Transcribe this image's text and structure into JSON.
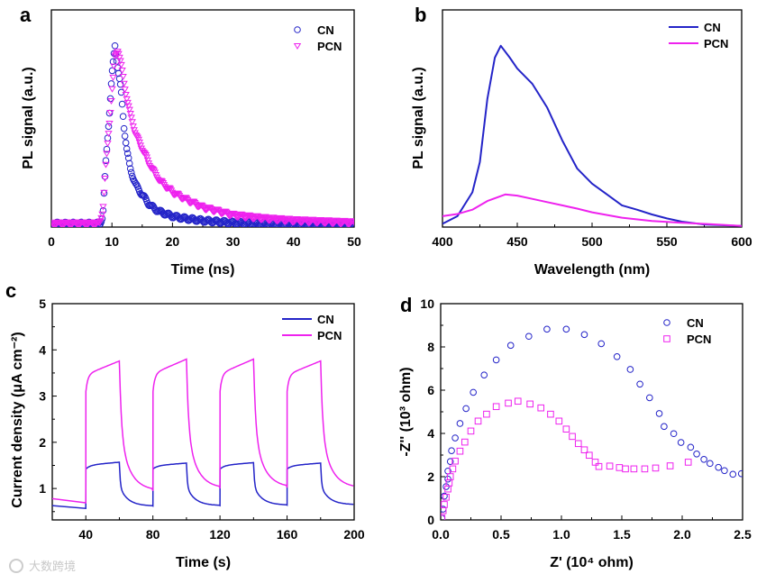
{
  "colors": {
    "CN": "#2424c8",
    "PCN": "#ee22ee",
    "axis": "#000000"
  },
  "watermark": "大数跨境",
  "chart_data": [
    {
      "panel": "a",
      "type": "scatter",
      "xlabel": "Time (ns)",
      "ylabel": "PL signal (a.u.)",
      "xlim": [
        0,
        50
      ],
      "ylim": [
        0,
        1
      ],
      "xticks": [
        "0",
        "10",
        "20",
        "30",
        "40",
        "50"
      ],
      "legend": "top-right",
      "series": [
        {
          "name": "CN",
          "marker": "circle",
          "points": [
            [
              0,
              0.015
            ],
            [
              8,
              0.015
            ],
            [
              8.5,
              0.05
            ],
            [
              9,
              0.3
            ],
            [
              9.5,
              0.49
            ],
            [
              10,
              0.7
            ],
            [
              10.5,
              0.835
            ],
            [
              11,
              0.73
            ],
            [
              11.5,
              0.63
            ],
            [
              12,
              0.46
            ],
            [
              12.5,
              0.35
            ],
            [
              13,
              0.27
            ],
            [
              14,
              0.19
            ],
            [
              15,
              0.15
            ],
            [
              16,
              0.11
            ],
            [
              17,
              0.085
            ],
            [
              18,
              0.07
            ],
            [
              20,
              0.05
            ],
            [
              22,
              0.04
            ],
            [
              25,
              0.03
            ],
            [
              30,
              0.02
            ],
            [
              35,
              0.015
            ],
            [
              50,
              0.015
            ]
          ]
        },
        {
          "name": "PCN",
          "marker": "triangle-down",
          "points": [
            [
              0,
              0.015
            ],
            [
              8,
              0.015
            ],
            [
              8.5,
              0.08
            ],
            [
              9,
              0.28
            ],
            [
              9.5,
              0.45
            ],
            [
              10,
              0.62
            ],
            [
              10.5,
              0.78
            ],
            [
              11,
              0.82
            ],
            [
              11.5,
              0.75
            ],
            [
              12,
              0.66
            ],
            [
              13,
              0.52
            ],
            [
              14,
              0.42
            ],
            [
              15,
              0.36
            ],
            [
              16,
              0.3
            ],
            [
              17,
              0.25
            ],
            [
              18,
              0.21
            ],
            [
              20,
              0.16
            ],
            [
              22,
              0.13
            ],
            [
              25,
              0.09
            ],
            [
              28,
              0.07
            ],
            [
              30,
              0.055
            ],
            [
              35,
              0.04
            ],
            [
              40,
              0.03
            ],
            [
              45,
              0.025
            ],
            [
              50,
              0.02
            ]
          ]
        }
      ]
    },
    {
      "panel": "b",
      "type": "line",
      "xlabel": "Wavelength (nm)",
      "ylabel": "PL signal (a.u.)",
      "xlim": [
        400,
        600
      ],
      "ylim": [
        0,
        1
      ],
      "xticks": [
        "400",
        "450",
        "500",
        "550",
        "600"
      ],
      "legend": "top-right",
      "series": [
        {
          "name": "CN",
          "points": [
            [
              400,
              0.015
            ],
            [
              410,
              0.05
            ],
            [
              420,
              0.16
            ],
            [
              425,
              0.3
            ],
            [
              430,
              0.59
            ],
            [
              435,
              0.78
            ],
            [
              439,
              0.835
            ],
            [
              445,
              0.78
            ],
            [
              450,
              0.73
            ],
            [
              460,
              0.66
            ],
            [
              470,
              0.55
            ],
            [
              480,
              0.4
            ],
            [
              490,
              0.27
            ],
            [
              500,
              0.2
            ],
            [
              510,
              0.15
            ],
            [
              520,
              0.1
            ],
            [
              530,
              0.08
            ],
            [
              540,
              0.058
            ],
            [
              550,
              0.04
            ],
            [
              560,
              0.025
            ],
            [
              575,
              0.012
            ],
            [
              600,
              0.005
            ]
          ]
        },
        {
          "name": "PCN",
          "points": [
            [
              400,
              0.05
            ],
            [
              410,
              0.06
            ],
            [
              420,
              0.08
            ],
            [
              430,
              0.12
            ],
            [
              442,
              0.15
            ],
            [
              450,
              0.145
            ],
            [
              460,
              0.13
            ],
            [
              470,
              0.115
            ],
            [
              480,
              0.1
            ],
            [
              490,
              0.085
            ],
            [
              500,
              0.068
            ],
            [
              520,
              0.043
            ],
            [
              540,
              0.028
            ],
            [
              560,
              0.02
            ],
            [
              580,
              0.013
            ],
            [
              600,
              0.005
            ]
          ]
        }
      ]
    },
    {
      "panel": "c",
      "type": "line",
      "xlabel": "Time (s)",
      "ylabel": "Current density (μA cm⁻²)",
      "xlim": [
        20,
        200
      ],
      "ylim": [
        0.32,
        5
      ],
      "xticks": [
        "40",
        "80",
        "120",
        "160",
        "200"
      ],
      "yticks": [
        "1",
        "2",
        "3",
        "4",
        "5"
      ],
      "legend": "top-right",
      "light_on_s": [
        40,
        80,
        120,
        160
      ],
      "light_duration_s": 20,
      "series": [
        {
          "name": "CN",
          "start": 0.63,
          "cycles": [
            {
              "dark_before": 0.57,
              "jump": 1.42,
              "on_end": 1.57,
              "dark_end": 0.62
            },
            {
              "dark_before": 0.62,
              "jump": 1.42,
              "on_end": 1.55,
              "dark_end": 0.63
            },
            {
              "dark_before": 0.63,
              "jump": 1.42,
              "on_end": 1.56,
              "dark_end": 0.64
            },
            {
              "dark_before": 0.64,
              "jump": 1.42,
              "on_end": 1.55,
              "dark_end": 0.65
            }
          ]
        },
        {
          "name": "PCN",
          "start": 0.78,
          "cycles": [
            {
              "dark_before": 0.69,
              "jump": 3.1,
              "on_end": 3.76,
              "dark_end": 0.95
            },
            {
              "dark_before": 0.95,
              "jump": 3.1,
              "on_end": 3.8,
              "dark_end": 1.0
            },
            {
              "dark_before": 1.0,
              "jump": 3.1,
              "on_end": 3.8,
              "dark_end": 1.02
            },
            {
              "dark_before": 1.02,
              "jump": 3.1,
              "on_end": 3.76,
              "dark_end": 1.01
            }
          ]
        }
      ]
    },
    {
      "panel": "d",
      "type": "scatter",
      "xlabel": "Z' (10⁴ ohm)",
      "ylabel": "-Z'' (10³ ohm)",
      "xlim": [
        0,
        2.5
      ],
      "ylim": [
        0,
        10
      ],
      "xticks": [
        "0.0",
        "0.5",
        "1.0",
        "1.5",
        "2.0",
        "2.5"
      ],
      "yticks": [
        "0",
        "2",
        "4",
        "6",
        "8",
        "10"
      ],
      "legend": "top-right",
      "series": [
        {
          "name": "CN",
          "marker": "circle",
          "points": [
            [
              0.01,
              0.08
            ],
            [
              0.02,
              0.5
            ],
            [
              0.03,
              1.1
            ],
            [
              0.045,
              1.54
            ],
            [
              0.06,
              1.89
            ],
            [
              0.06,
              2.26
            ],
            [
              0.08,
              2.7
            ],
            [
              0.09,
              3.2
            ],
            [
              0.12,
              3.79
            ],
            [
              0.16,
              4.46
            ],
            [
              0.21,
              5.15
            ],
            [
              0.27,
              5.9
            ],
            [
              0.36,
              6.7
            ],
            [
              0.46,
              7.4
            ],
            [
              0.58,
              8.07
            ],
            [
              0.73,
              8.49
            ],
            [
              0.88,
              8.82
            ],
            [
              1.04,
              8.82
            ],
            [
              1.19,
              8.57
            ],
            [
              1.33,
              8.15
            ],
            [
              1.46,
              7.55
            ],
            [
              1.57,
              6.96
            ],
            [
              1.65,
              6.28
            ],
            [
              1.73,
              5.65
            ],
            [
              1.81,
              4.92
            ],
            [
              1.85,
              4.32
            ],
            [
              1.93,
              3.99
            ],
            [
              1.99,
              3.58
            ],
            [
              2.07,
              3.36
            ],
            [
              2.12,
              3.05
            ],
            [
              2.18,
              2.8
            ],
            [
              2.23,
              2.61
            ],
            [
              2.3,
              2.43
            ],
            [
              2.35,
              2.28
            ],
            [
              2.42,
              2.11
            ],
            [
              2.49,
              2.14
            ]
          ]
        },
        {
          "name": "PCN",
          "marker": "square",
          "points": [
            [
              0.01,
              0.08
            ],
            [
              0.02,
              0.43
            ],
            [
              0.03,
              0.71
            ],
            [
              0.045,
              1.05
            ],
            [
              0.06,
              1.43
            ],
            [
              0.07,
              1.71
            ],
            [
              0.08,
              2.0
            ],
            [
              0.1,
              2.36
            ],
            [
              0.12,
              2.72
            ],
            [
              0.16,
              3.18
            ],
            [
              0.2,
              3.6
            ],
            [
              0.25,
              4.11
            ],
            [
              0.31,
              4.57
            ],
            [
              0.38,
              4.89
            ],
            [
              0.46,
              5.24
            ],
            [
              0.56,
              5.4
            ],
            [
              0.64,
              5.49
            ],
            [
              0.74,
              5.36
            ],
            [
              0.83,
              5.18
            ],
            [
              0.91,
              4.89
            ],
            [
              0.98,
              4.57
            ],
            [
              1.04,
              4.2
            ],
            [
              1.09,
              3.86
            ],
            [
              1.14,
              3.53
            ],
            [
              1.19,
              3.24
            ],
            [
              1.23,
              2.99
            ],
            [
              1.28,
              2.67
            ],
            [
              1.31,
              2.47
            ],
            [
              1.4,
              2.49
            ],
            [
              1.48,
              2.42
            ],
            [
              1.53,
              2.36
            ],
            [
              1.6,
              2.36
            ],
            [
              1.69,
              2.36
            ],
            [
              1.78,
              2.4
            ],
            [
              1.9,
              2.5
            ],
            [
              2.05,
              2.67
            ]
          ]
        }
      ]
    }
  ]
}
